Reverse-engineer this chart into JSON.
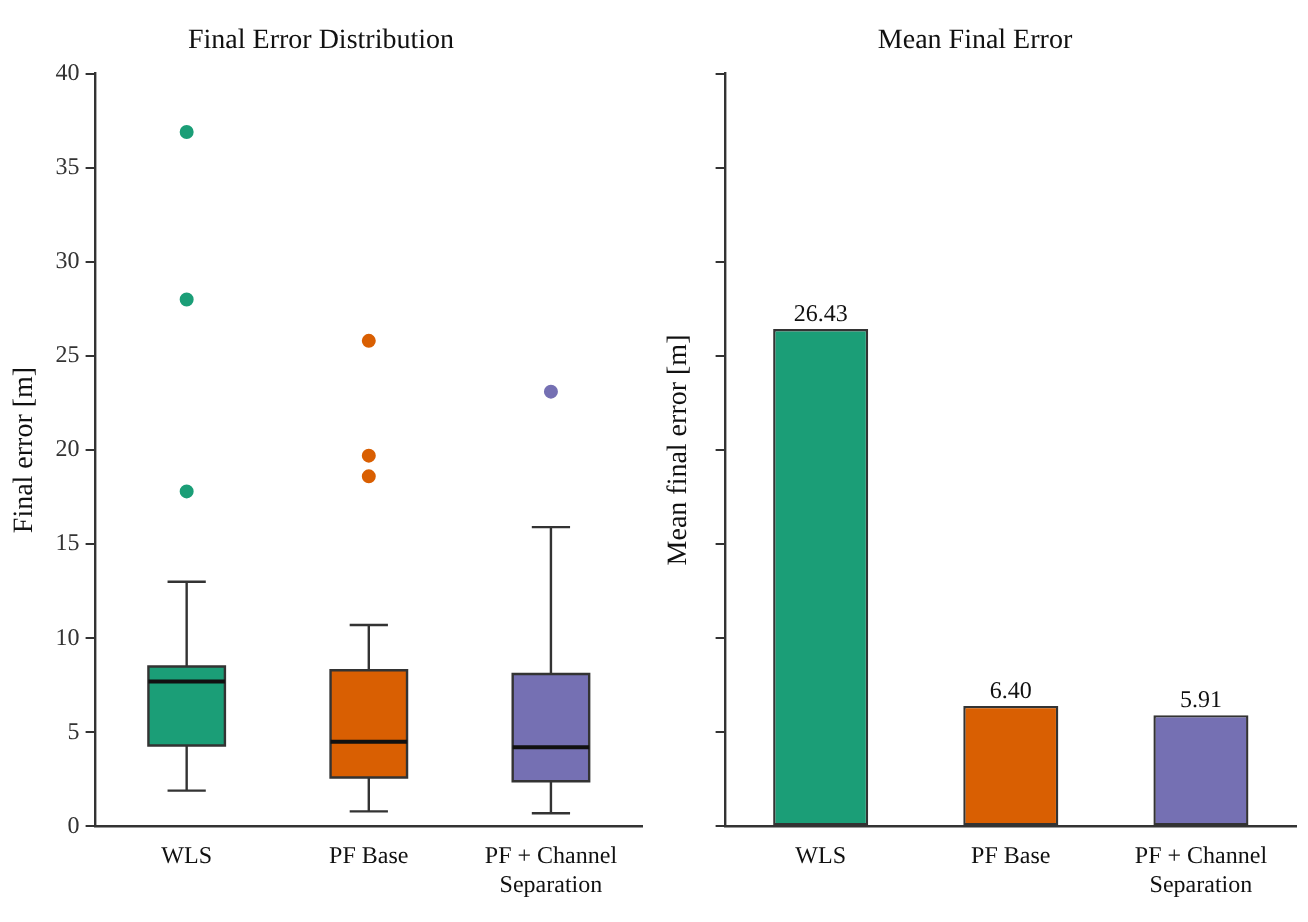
{
  "chart_data": [
    {
      "type": "box",
      "title": "Final Error Distribution",
      "ylabel": "Final error [m]",
      "categories": [
        "WLS",
        "PF Base",
        "PF + Channel Separation"
      ],
      "colors": [
        "#1b9e77",
        "#d95f02",
        "#7570b3"
      ],
      "boxes": [
        {
          "low": 1.9,
          "q1": 4.3,
          "median": 7.7,
          "q3": 8.5,
          "high": 13.0,
          "outliers": [
            17.8,
            28.0,
            36.9
          ]
        },
        {
          "low": 0.8,
          "q1": 2.6,
          "median": 4.5,
          "q3": 8.3,
          "high": 10.7,
          "outliers": [
            18.6,
            19.7,
            25.8
          ]
        },
        {
          "low": 0.7,
          "q1": 2.4,
          "median": 4.2,
          "q3": 8.1,
          "high": 15.9,
          "outliers": [
            23.1
          ]
        }
      ],
      "ylim": [
        0,
        40
      ],
      "yticks": [
        0,
        5,
        10,
        15,
        20,
        25,
        30,
        35,
        40
      ],
      "grid": false,
      "legend": false
    },
    {
      "type": "bar",
      "title": "Mean Final Error",
      "ylabel": "Mean final error [m]",
      "categories": [
        "WLS",
        "PF Base",
        "PF + Channel Separation"
      ],
      "values": [
        26.43,
        6.4,
        5.91
      ],
      "value_labels": [
        "26.43",
        "6.40",
        "5.91"
      ],
      "colors": [
        "#1b9e77",
        "#d95f02",
        "#7570b3"
      ],
      "ylim": [
        0,
        40
      ],
      "yticks": [
        {
          "value": 0,
          "label": null
        },
        {
          "value": 5,
          "label": null
        },
        {
          "value": 10,
          "label": null
        },
        {
          "value": 15,
          "label": null
        },
        {
          "value": 20,
          "label": null
        },
        {
          "value": 25,
          "label": null
        },
        {
          "value": 30,
          "label": null
        },
        {
          "value": 35,
          "label": null
        },
        {
          "value": 40,
          "label": null
        }
      ],
      "tick_labels": "x",
      "grid": false,
      "legend": false
    }
  ]
}
